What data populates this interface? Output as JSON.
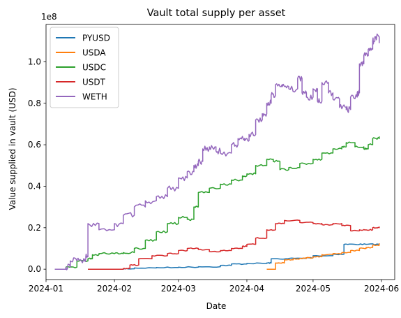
{
  "chart_data": {
    "type": "line",
    "title": "Vault total supply per asset",
    "xlabel": "Date",
    "ylabel": "Value supplied in vault (USD)",
    "y_offset_label": "1e8",
    "xlim": [
      "2024-01-01",
      "2024-06-07"
    ],
    "ylim": [
      -5000000,
      118000000
    ],
    "x_ticks": [
      "2024-01",
      "2024-02",
      "2024-03",
      "2024-04",
      "2024-05",
      "2024-06"
    ],
    "x_tick_dates": [
      "2024-01-01",
      "2024-02-01",
      "2024-03-01",
      "2024-04-01",
      "2024-05-01",
      "2024-06-01"
    ],
    "y_ticks": [
      0,
      20000000,
      40000000,
      60000000,
      80000000,
      100000000
    ],
    "y_tick_labels": [
      "0.0",
      "0.2",
      "0.4",
      "0.6",
      "0.8",
      "1.0"
    ],
    "legend_position": "top-left",
    "grid": false,
    "series": [
      {
        "name": "PYUSD",
        "color": "#1f77b4",
        "x": [
          "2024-01-20",
          "2024-02-05",
          "2024-02-10",
          "2024-02-20",
          "2024-03-01",
          "2024-03-10",
          "2024-03-20",
          "2024-03-25",
          "2024-04-01",
          "2024-04-10",
          "2024-04-12",
          "2024-04-20",
          "2024-04-28",
          "2024-05-01",
          "2024-05-10",
          "2024-05-15",
          "2024-05-20",
          "2024-05-25",
          "2024-05-31"
        ],
        "y": [
          0,
          200000,
          600000,
          800000,
          1000000,
          1200000,
          1800000,
          2500000,
          2800000,
          3000000,
          5000000,
          5200000,
          5500000,
          6500000,
          7200000,
          12000000,
          12000000,
          12000000,
          12000000
        ]
      },
      {
        "name": "USDA",
        "color": "#ff7f0e",
        "x": [
          "2024-04-10",
          "2024-04-13",
          "2024-04-14",
          "2024-04-18",
          "2024-04-22",
          "2024-04-25",
          "2024-04-28",
          "2024-05-01",
          "2024-05-05",
          "2024-05-10",
          "2024-05-14",
          "2024-05-18",
          "2024-05-22",
          "2024-05-25",
          "2024-05-28",
          "2024-05-31"
        ],
        "y": [
          0,
          0,
          3000000,
          4500000,
          5000000,
          5200000,
          5500000,
          6000000,
          7000000,
          7500000,
          8000000,
          9000000,
          10000000,
          10500000,
          11500000,
          12500000
        ]
      },
      {
        "name": "USDC",
        "color": "#2ca02c",
        "x": [
          "2024-01-05",
          "2024-01-10",
          "2024-01-15",
          "2024-01-20",
          "2024-01-22",
          "2024-01-25",
          "2024-02-01",
          "2024-02-05",
          "2024-02-10",
          "2024-02-15",
          "2024-02-20",
          "2024-02-25",
          "2024-03-01",
          "2024-03-05",
          "2024-03-08",
          "2024-03-10",
          "2024-03-15",
          "2024-03-20",
          "2024-03-25",
          "2024-03-30",
          "2024-04-01",
          "2024-04-05",
          "2024-04-10",
          "2024-04-13",
          "2024-04-16",
          "2024-04-20",
          "2024-04-25",
          "2024-05-01",
          "2024-05-05",
          "2024-05-10",
          "2024-05-14",
          "2024-05-16",
          "2024-05-20",
          "2024-05-24",
          "2024-05-26",
          "2024-05-28",
          "2024-05-31"
        ],
        "y": [
          0,
          1000000,
          4000000,
          5000000,
          7000000,
          7500000,
          7500000,
          8000000,
          10000000,
          14000000,
          18000000,
          22000000,
          25000000,
          24000000,
          30000000,
          37000000,
          39000000,
          41000000,
          43000000,
          45000000,
          46000000,
          50000000,
          53000000,
          52000000,
          48000000,
          49000000,
          51000000,
          53000000,
          56000000,
          58000000,
          59000000,
          61000000,
          59000000,
          58000000,
          60000000,
          63000000,
          64000000
        ]
      },
      {
        "name": "USDT",
        "color": "#d62728",
        "x": [
          "2024-01-20",
          "2024-01-25",
          "2024-02-01",
          "2024-02-05",
          "2024-02-08",
          "2024-02-12",
          "2024-02-18",
          "2024-02-25",
          "2024-03-01",
          "2024-03-05",
          "2024-03-10",
          "2024-03-15",
          "2024-03-20",
          "2024-03-25",
          "2024-03-30",
          "2024-04-01",
          "2024-04-05",
          "2024-04-10",
          "2024-04-14",
          "2024-04-18",
          "2024-04-25",
          "2024-05-01",
          "2024-05-05",
          "2024-05-10",
          "2024-05-14",
          "2024-05-18",
          "2024-05-22",
          "2024-05-25",
          "2024-05-28",
          "2024-05-31"
        ],
        "y": [
          0,
          0,
          0,
          300000,
          2000000,
          5000000,
          6500000,
          7500000,
          9000000,
          10000000,
          9500000,
          8500000,
          9000000,
          10000000,
          11000000,
          12000000,
          15000000,
          19000000,
          22000000,
          23500000,
          22500000,
          22000000,
          21500000,
          22000000,
          21000000,
          18500000,
          19000000,
          19000000,
          20000000,
          20500000
        ]
      },
      {
        "name": "WETH",
        "color": "#9467bd",
        "x": [
          "2024-01-05",
          "2024-01-10",
          "2024-01-12",
          "2024-01-15",
          "2024-01-18",
          "2024-01-19",
          "2024-01-20",
          "2024-01-25",
          "2024-02-01",
          "2024-02-05",
          "2024-02-10",
          "2024-02-15",
          "2024-02-20",
          "2024-02-25",
          "2024-03-01",
          "2024-03-05",
          "2024-03-08",
          "2024-03-10",
          "2024-03-12",
          "2024-03-15",
          "2024-03-18",
          "2024-03-20",
          "2024-03-25",
          "2024-03-28",
          "2024-03-31",
          "2024-04-02",
          "2024-04-05",
          "2024-04-08",
          "2024-04-10",
          "2024-04-12",
          "2024-04-14",
          "2024-04-17",
          "2024-04-20",
          "2024-04-24",
          "2024-04-26",
          "2024-04-28",
          "2024-05-01",
          "2024-05-03",
          "2024-05-05",
          "2024-05-08",
          "2024-05-10",
          "2024-05-13",
          "2024-05-16",
          "2024-05-18",
          "2024-05-21",
          "2024-05-22",
          "2024-05-24",
          "2024-05-26",
          "2024-05-28",
          "2024-05-29",
          "2024-05-31"
        ],
        "y": [
          0,
          1000000,
          4000000,
          4500000,
          5000000,
          6000000,
          22000000,
          19000000,
          22000000,
          26000000,
          30000000,
          33000000,
          35000000,
          39000000,
          44000000,
          47000000,
          50000000,
          52000000,
          58000000,
          59000000,
          57000000,
          56000000,
          60000000,
          63000000,
          62000000,
          65000000,
          72000000,
          75000000,
          80000000,
          84000000,
          89000000,
          88000000,
          87000000,
          92000000,
          85000000,
          83000000,
          87000000,
          81000000,
          90000000,
          85000000,
          82000000,
          78000000,
          77000000,
          83000000,
          85000000,
          99000000,
          103000000,
          106000000,
          110000000,
          112000000,
          109000000
        ]
      }
    ]
  }
}
